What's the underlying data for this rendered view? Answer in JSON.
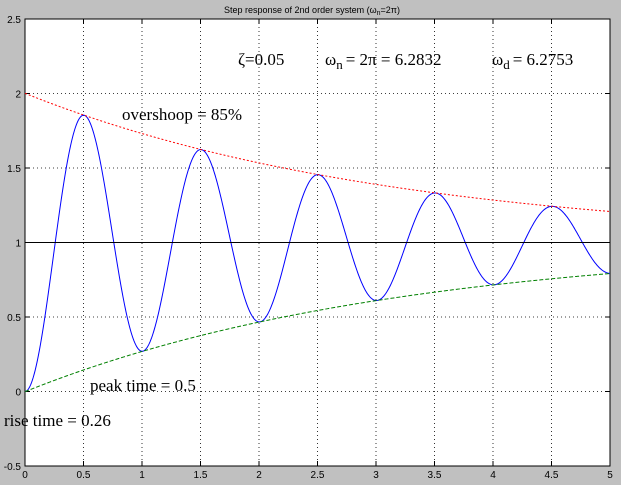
{
  "chart_data": {
    "type": "line",
    "title_prefix": "Step response of 2nd order system (",
    "title_omega": "ω",
    "title_sub": "n",
    "title_suffix": "=2π)",
    "xlim": [
      0,
      5
    ],
    "ylim": [
      -0.5,
      2.5
    ],
    "xticks": [
      "0",
      "0.5",
      "1",
      "1.5",
      "2",
      "2.5",
      "3",
      "3.5",
      "4",
      "4.5",
      "5"
    ],
    "yticks": [
      "-0.5",
      "0",
      "0.5",
      "1",
      "1.5",
      "2",
      "2.5"
    ],
    "grid": true,
    "params": {
      "zeta": 0.05,
      "wn": 6.2832,
      "wd": 6.2753
    },
    "labels": {
      "zeta": "ζ=0.05",
      "wn_omega": "ω",
      "wn_sub": "n",
      "wn_value": "= 2π = 6.2832",
      "wd_omega": "ω",
      "wd_sub": "d",
      "wd_value": "= 6.2753",
      "overshoot": "overshoop = 85%",
      "peak_time": "peak time = 0.5",
      "rise_time": "rise time = 0.26"
    },
    "series": [
      {
        "role": "step-response",
        "color": "#0000ff",
        "style": "solid"
      },
      {
        "role": "upper-envelope",
        "color": "#ff0000",
        "style": "dotted"
      },
      {
        "role": "lower-envelope",
        "color": "#008000",
        "style": "dashed"
      },
      {
        "role": "steady-state",
        "color": "#000000",
        "style": "solid",
        "value": 1
      }
    ]
  }
}
